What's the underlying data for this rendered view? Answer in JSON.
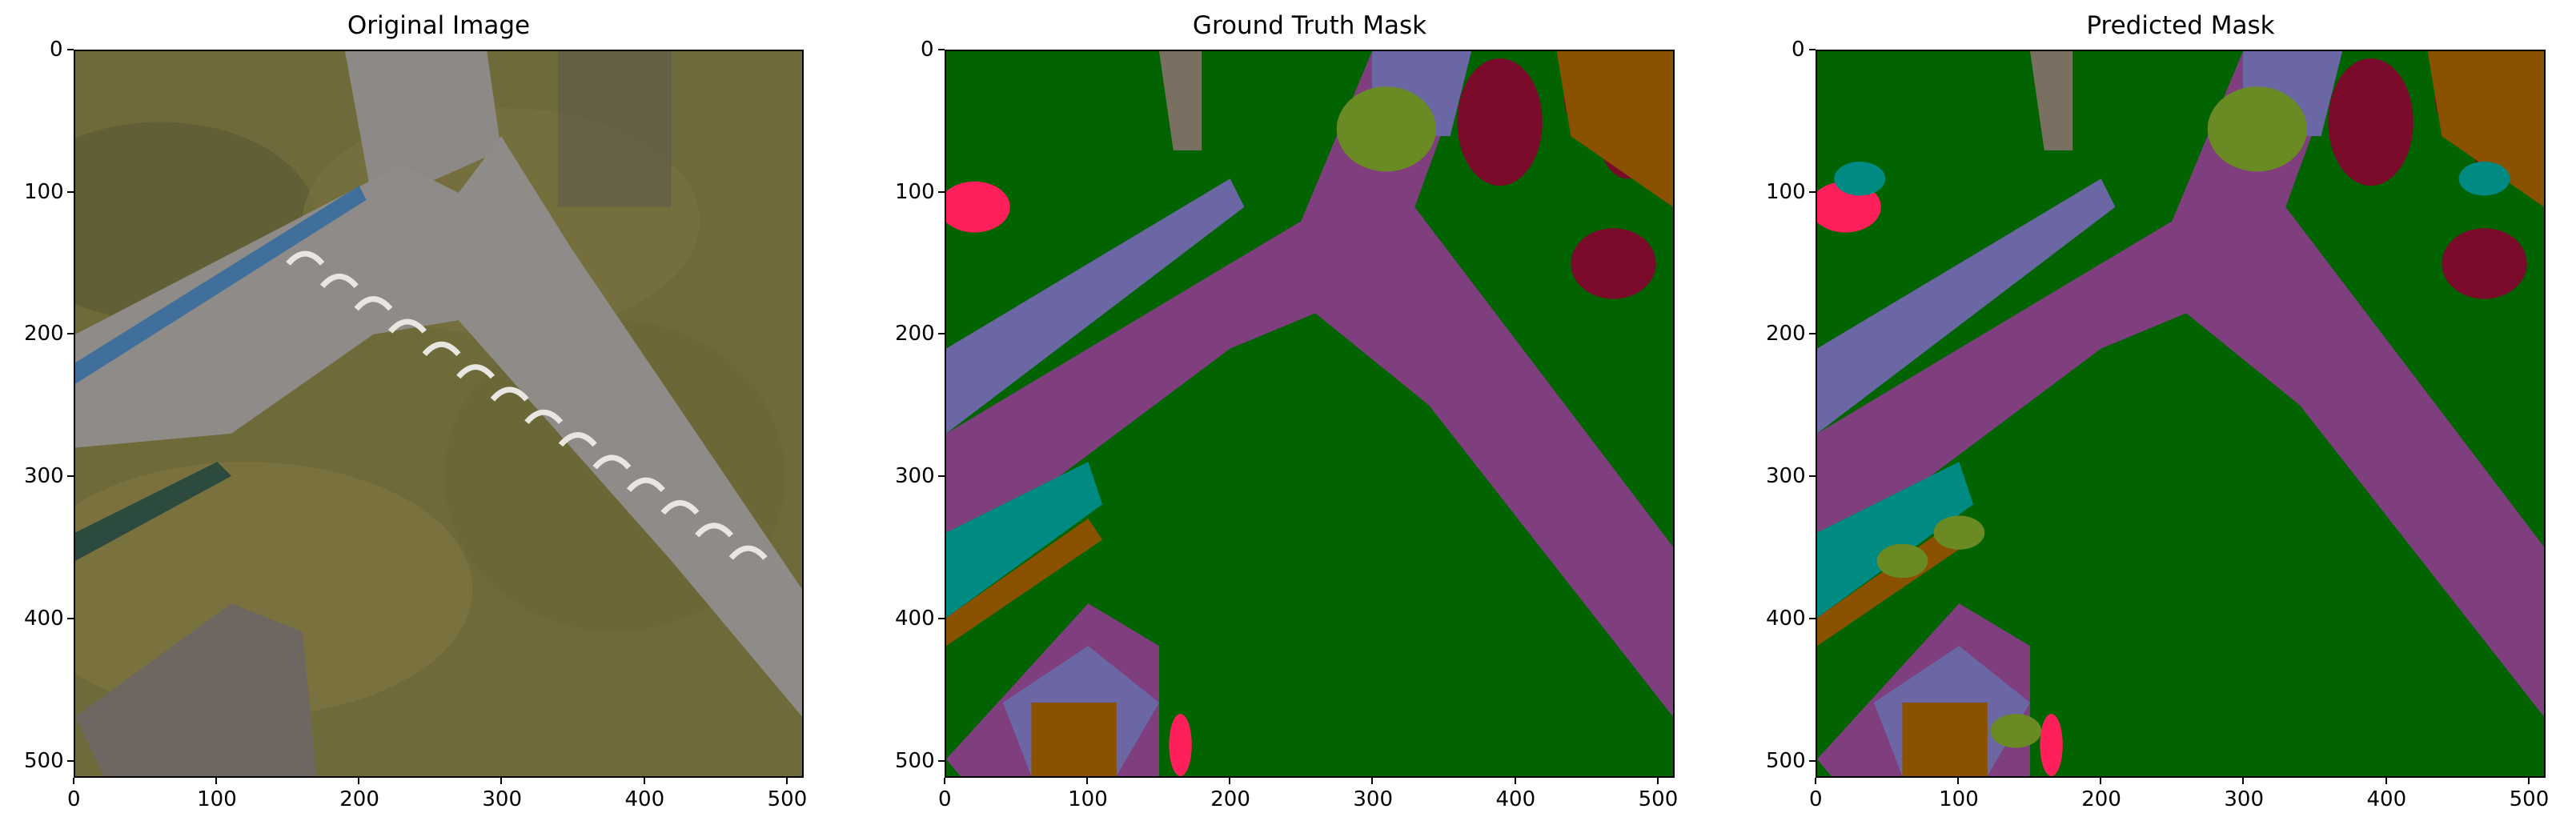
{
  "figure": {
    "panels": [
      {
        "key": "original",
        "title": "Original Image"
      },
      {
        "key": "ground_truth",
        "title": "Ground Truth Mask"
      },
      {
        "key": "predicted",
        "title": "Predicted Mask"
      }
    ],
    "x_ticks": [
      "0",
      "100",
      "200",
      "300",
      "400",
      "500"
    ],
    "y_ticks": [
      "0",
      "100",
      "200",
      "300",
      "400",
      "500"
    ],
    "axis_range": [
      0,
      512
    ]
  },
  "mask_colors": {
    "vegetation": "#016400",
    "paved_area": "#7f3f7f",
    "roof_wall": "#6b66a4",
    "tree": "#7a0b2b",
    "shrub": "#6a8a23",
    "water_pool": "#008a84",
    "person": "#ff1f5b",
    "dirt": "#8a5200",
    "other": "#7a7062"
  }
}
